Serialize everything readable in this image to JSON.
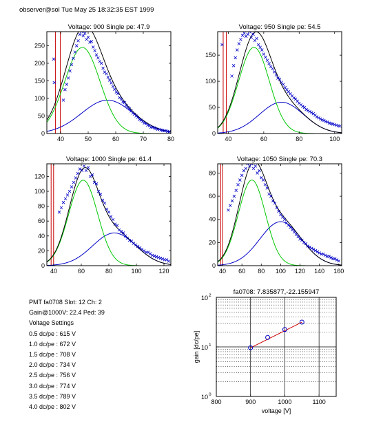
{
  "header": "observer@sol  Tue May 25 18:32:35 EST 1999",
  "colors": {
    "data": "#0000c8",
    "total_fit": "#000000",
    "single_pe": "#00c800",
    "double_pe": "#0000c8",
    "pedestal": "#c80000",
    "gain_fit": "#c80000",
    "gain_points": "#0000c8"
  },
  "info": {
    "pmt_line": "PMT fa0708 Slot: 12 Ch: 2",
    "gain_line": "Gain@1000V: 22.4 Ped: 39",
    "settings_title": "Voltage Settings",
    "settings": [
      "0.5 dc/pe : 615 V",
      "1.0 dc/pe : 672 V",
      "1.5 dc/pe : 708 V",
      "2.0 dc/pe : 734 V",
      "2.5 dc/pe : 756 V",
      "3.0 dc/pe : 774 V",
      "3.5 dc/pe : 789 V",
      "4.0 dc/pe : 802 V"
    ]
  },
  "chart_data": [
    {
      "type": "scatter",
      "title": "Voltage: 900 Single pe: 47.9",
      "xlim": [
        35,
        80
      ],
      "ylim": [
        0,
        290
      ],
      "xticks": [
        40,
        50,
        60,
        70,
        80
      ],
      "yticks": [
        0,
        50,
        100,
        150,
        200,
        250
      ],
      "pedestal": {
        "center": 39,
        "limit": 290
      },
      "single_pe": {
        "mean": 47.9,
        "sigma": 6.4,
        "amp": 245
      },
      "double_pe": {
        "mean": 57,
        "sigma": 9.4,
        "amp": 95
      },
      "pedestal_markers": [
        {
          "x": 37.5,
          "y": 212
        },
        {
          "x": 37.7,
          "y": 145
        }
      ],
      "points": [
        [
          41,
          95
        ],
        [
          41.6,
          125
        ],
        [
          42.2,
          140
        ],
        [
          42.8,
          158
        ],
        [
          43.4,
          178
        ],
        [
          44,
          196
        ],
        [
          44.6,
          214
        ],
        [
          45.2,
          232
        ],
        [
          45.8,
          250
        ],
        [
          46.4,
          264
        ],
        [
          47,
          282
        ],
        [
          47.6,
          290
        ],
        [
          48.2,
          278
        ],
        [
          48.8,
          285
        ],
        [
          49.4,
          268
        ],
        [
          50,
          274
        ],
        [
          50.6,
          260
        ],
        [
          51.2,
          262
        ],
        [
          51.8,
          246
        ],
        [
          52.4,
          236
        ],
        [
          53,
          224
        ],
        [
          53.6,
          215
        ],
        [
          54.2,
          205
        ],
        [
          54.8,
          200
        ],
        [
          55.4,
          186
        ],
        [
          56,
          175
        ],
        [
          56.6,
          170
        ],
        [
          57.2,
          160
        ],
        [
          57.8,
          152
        ],
        [
          58.4,
          144
        ],
        [
          59,
          134
        ],
        [
          59.6,
          126
        ],
        [
          60.2,
          118
        ],
        [
          60.8,
          114
        ],
        [
          61.4,
          102
        ],
        [
          62,
          98
        ],
        [
          62.6,
          90
        ],
        [
          63.2,
          88
        ],
        [
          63.8,
          80
        ],
        [
          64.4,
          74
        ],
        [
          65,
          70
        ],
        [
          65.6,
          64
        ],
        [
          66.2,
          58
        ],
        [
          66.8,
          55
        ],
        [
          67.4,
          50
        ],
        [
          68,
          46
        ],
        [
          68.6,
          40
        ],
        [
          69.2,
          38
        ],
        [
          69.8,
          34
        ],
        [
          70.4,
          30
        ],
        [
          71,
          28
        ],
        [
          71.6,
          24
        ],
        [
          72.2,
          22
        ],
        [
          72.8,
          18
        ],
        [
          73.4,
          18
        ],
        [
          74,
          16
        ],
        [
          74.6,
          14
        ],
        [
          75.2,
          12
        ],
        [
          75.8,
          12
        ],
        [
          76.4,
          10
        ],
        [
          77,
          9
        ],
        [
          77.6,
          8
        ],
        [
          78.2,
          8
        ],
        [
          78.8,
          6
        ],
        [
          79.4,
          5
        ]
      ]
    },
    {
      "type": "scatter",
      "title": "Voltage: 950 Single pe: 54.5",
      "xlim": [
        34,
        104
      ],
      "ylim": [
        0,
        195
      ],
      "xticks": [
        40,
        60,
        80,
        100
      ],
      "yticks": [
        0,
        50,
        100,
        150
      ],
      "pedestal": {
        "center": 38,
        "limit": 195
      },
      "single_pe": {
        "mean": 54.5,
        "sigma": 8.7,
        "amp": 165
      },
      "double_pe": {
        "mean": 70,
        "sigma": 12.5,
        "amp": 60
      },
      "pedestal_markers": [
        {
          "x": 36.5,
          "y": 170
        }
      ],
      "points": [
        [
          42,
          110
        ],
        [
          43,
          130
        ],
        [
          44,
          145
        ],
        [
          45,
          160
        ],
        [
          46,
          172
        ],
        [
          47,
          180
        ],
        [
          48,
          188
        ],
        [
          49,
          192
        ],
        [
          50,
          186
        ],
        [
          51,
          190
        ],
        [
          52,
          195
        ],
        [
          53,
          184
        ],
        [
          54,
          190
        ],
        [
          55,
          178
        ],
        [
          56,
          182
        ],
        [
          57,
          170
        ],
        [
          58,
          165
        ],
        [
          59,
          160
        ],
        [
          60,
          152
        ],
        [
          61,
          146
        ],
        [
          62,
          140
        ],
        [
          63,
          134
        ],
        [
          64,
          128
        ],
        [
          65,
          124
        ],
        [
          66,
          118
        ],
        [
          67,
          112
        ],
        [
          68,
          106
        ],
        [
          69,
          104
        ],
        [
          70,
          98
        ],
        [
          71,
          94
        ],
        [
          72,
          88
        ],
        [
          73,
          84
        ],
        [
          74,
          80
        ],
        [
          75,
          76
        ],
        [
          76,
          72
        ],
        [
          77,
          68
        ],
        [
          78,
          66
        ],
        [
          79,
          62
        ],
        [
          80,
          58
        ],
        [
          81,
          55
        ],
        [
          82,
          52
        ],
        [
          83,
          50
        ],
        [
          84,
          46
        ],
        [
          85,
          44
        ],
        [
          86,
          42
        ],
        [
          87,
          40
        ],
        [
          88,
          38
        ],
        [
          89,
          35
        ],
        [
          90,
          32
        ],
        [
          91,
          30
        ],
        [
          92,
          28
        ],
        [
          93,
          26
        ],
        [
          94,
          25
        ],
        [
          95,
          23
        ],
        [
          96,
          22
        ],
        [
          97,
          20
        ],
        [
          98,
          19
        ],
        [
          99,
          18
        ],
        [
          100,
          17
        ],
        [
          101,
          16
        ],
        [
          102,
          15
        ],
        [
          103,
          14
        ]
      ]
    },
    {
      "type": "scatter",
      "title": "Voltage: 1000 Single pe: 61.4",
      "xlim": [
        35,
        125
      ],
      "ylim": [
        0,
        137
      ],
      "xticks": [
        40,
        60,
        80,
        100,
        120
      ],
      "yticks": [
        0,
        20,
        40,
        60,
        80,
        100,
        120
      ],
      "pedestal": {
        "center": 39,
        "limit": 137
      },
      "single_pe": {
        "mean": 61.4,
        "sigma": 10.5,
        "amp": 115
      },
      "double_pe": {
        "mean": 84,
        "sigma": 15.8,
        "amp": 44
      },
      "pedestal_markers": [],
      "points": [
        [
          44,
          72
        ],
        [
          45.5,
          78
        ],
        [
          47,
          85
        ],
        [
          48.5,
          90
        ],
        [
          50,
          95
        ],
        [
          51.5,
          100
        ],
        [
          53,
          106
        ],
        [
          54.5,
          112
        ],
        [
          56,
          118
        ],
        [
          57.5,
          124
        ],
        [
          59,
          130
        ],
        [
          60.5,
          128
        ],
        [
          62,
          134
        ],
        [
          63.5,
          128
        ],
        [
          65,
          132
        ],
        [
          66.5,
          120
        ],
        [
          68,
          122
        ],
        [
          69.5,
          112
        ],
        [
          71,
          110
        ],
        [
          72.5,
          100
        ],
        [
          74,
          96
        ],
        [
          75.5,
          88
        ],
        [
          77,
          84
        ],
        [
          78.5,
          76
        ],
        [
          80,
          72
        ],
        [
          81.5,
          66
        ],
        [
          83,
          62
        ],
        [
          84.5,
          56
        ],
        [
          86,
          54
        ],
        [
          87.5,
          48
        ],
        [
          89,
          46
        ],
        [
          90.5,
          44
        ],
        [
          92,
          40
        ],
        [
          93.5,
          37
        ],
        [
          95,
          34
        ],
        [
          96.5,
          33
        ],
        [
          98,
          30
        ],
        [
          99.5,
          28
        ],
        [
          101,
          26
        ],
        [
          102.5,
          24
        ],
        [
          104,
          22
        ],
        [
          105.5,
          20
        ],
        [
          107,
          18
        ],
        [
          108.5,
          18
        ],
        [
          110,
          16
        ],
        [
          111.5,
          14
        ],
        [
          113,
          13
        ],
        [
          114.5,
          12
        ],
        [
          116,
          11
        ],
        [
          117.5,
          10
        ],
        [
          119,
          9
        ],
        [
          120.5,
          8
        ],
        [
          122,
          8
        ],
        [
          123.5,
          6
        ]
      ]
    },
    {
      "type": "scatter",
      "title": "Voltage: 1050 Single pe: 70.3",
      "xlim": [
        35,
        163
      ],
      "ylim": [
        0,
        88
      ],
      "xticks": [
        40,
        60,
        80,
        100,
        120,
        140,
        160
      ],
      "yticks": [
        0,
        20,
        40,
        60,
        80
      ],
      "pedestal": {
        "center": 39,
        "limit": 88
      },
      "single_pe": {
        "mean": 70.3,
        "sigma": 14,
        "amp": 74
      },
      "double_pe": {
        "mean": 100,
        "sigma": 21.5,
        "amp": 38
      },
      "pedestal_markers": [],
      "points": [
        [
          46,
          48
        ],
        [
          48,
          52
        ],
        [
          50,
          56
        ],
        [
          52,
          60
        ],
        [
          54,
          65
        ],
        [
          56,
          70
        ],
        [
          58,
          74
        ],
        [
          60,
          78
        ],
        [
          62,
          82
        ],
        [
          64,
          84
        ],
        [
          66,
          88
        ],
        [
          68,
          86
        ],
        [
          70,
          88
        ],
        [
          72,
          84
        ],
        [
          74,
          86
        ],
        [
          76,
          80
        ],
        [
          78,
          82
        ],
        [
          80,
          76
        ],
        [
          82,
          74
        ],
        [
          84,
          70
        ],
        [
          86,
          67
        ],
        [
          88,
          62
        ],
        [
          90,
          60
        ],
        [
          92,
          56
        ],
        [
          94,
          54
        ],
        [
          96,
          50
        ],
        [
          98,
          47
        ],
        [
          100,
          44
        ],
        [
          102,
          42
        ],
        [
          104,
          40
        ],
        [
          106,
          37
        ],
        [
          108,
          35
        ],
        [
          110,
          33
        ],
        [
          112,
          31
        ],
        [
          114,
          29
        ],
        [
          116,
          27
        ],
        [
          118,
          25
        ],
        [
          120,
          23
        ],
        [
          122,
          22
        ],
        [
          124,
          20
        ],
        [
          126,
          19
        ],
        [
          128,
          17
        ],
        [
          130,
          16
        ],
        [
          132,
          15
        ],
        [
          134,
          14
        ],
        [
          136,
          13
        ],
        [
          138,
          12
        ],
        [
          140,
          11
        ],
        [
          142,
          10
        ],
        [
          144,
          10
        ],
        [
          146,
          9
        ],
        [
          148,
          8
        ],
        [
          150,
          8
        ],
        [
          152,
          7
        ],
        [
          154,
          6
        ],
        [
          156,
          6
        ],
        [
          158,
          5
        ],
        [
          160,
          4
        ]
      ]
    },
    {
      "type": "scatter",
      "title": "fa0708: 7.835877,-22.155947",
      "xlabel": "voltage [V]",
      "ylabel": "gain [dc/pe]",
      "xlim": [
        800,
        1150
      ],
      "ylim": [
        1,
        100
      ],
      "yscale": "log",
      "grid": true,
      "xticks": [
        800,
        900,
        1000,
        1100
      ],
      "yticks": [
        {
          "value": 1,
          "base": "10",
          "exp": "0"
        },
        {
          "value": 10,
          "base": "10",
          "exp": "1"
        },
        {
          "value": 100,
          "base": "10",
          "exp": "2"
        }
      ],
      "x": [
        900,
        950,
        1000,
        1050
      ],
      "y": [
        9.6,
        15.5,
        22.4,
        31.6
      ],
      "fit": {
        "x": [
          900,
          1050
        ],
        "y": [
          9.6,
          31.6
        ]
      }
    }
  ]
}
